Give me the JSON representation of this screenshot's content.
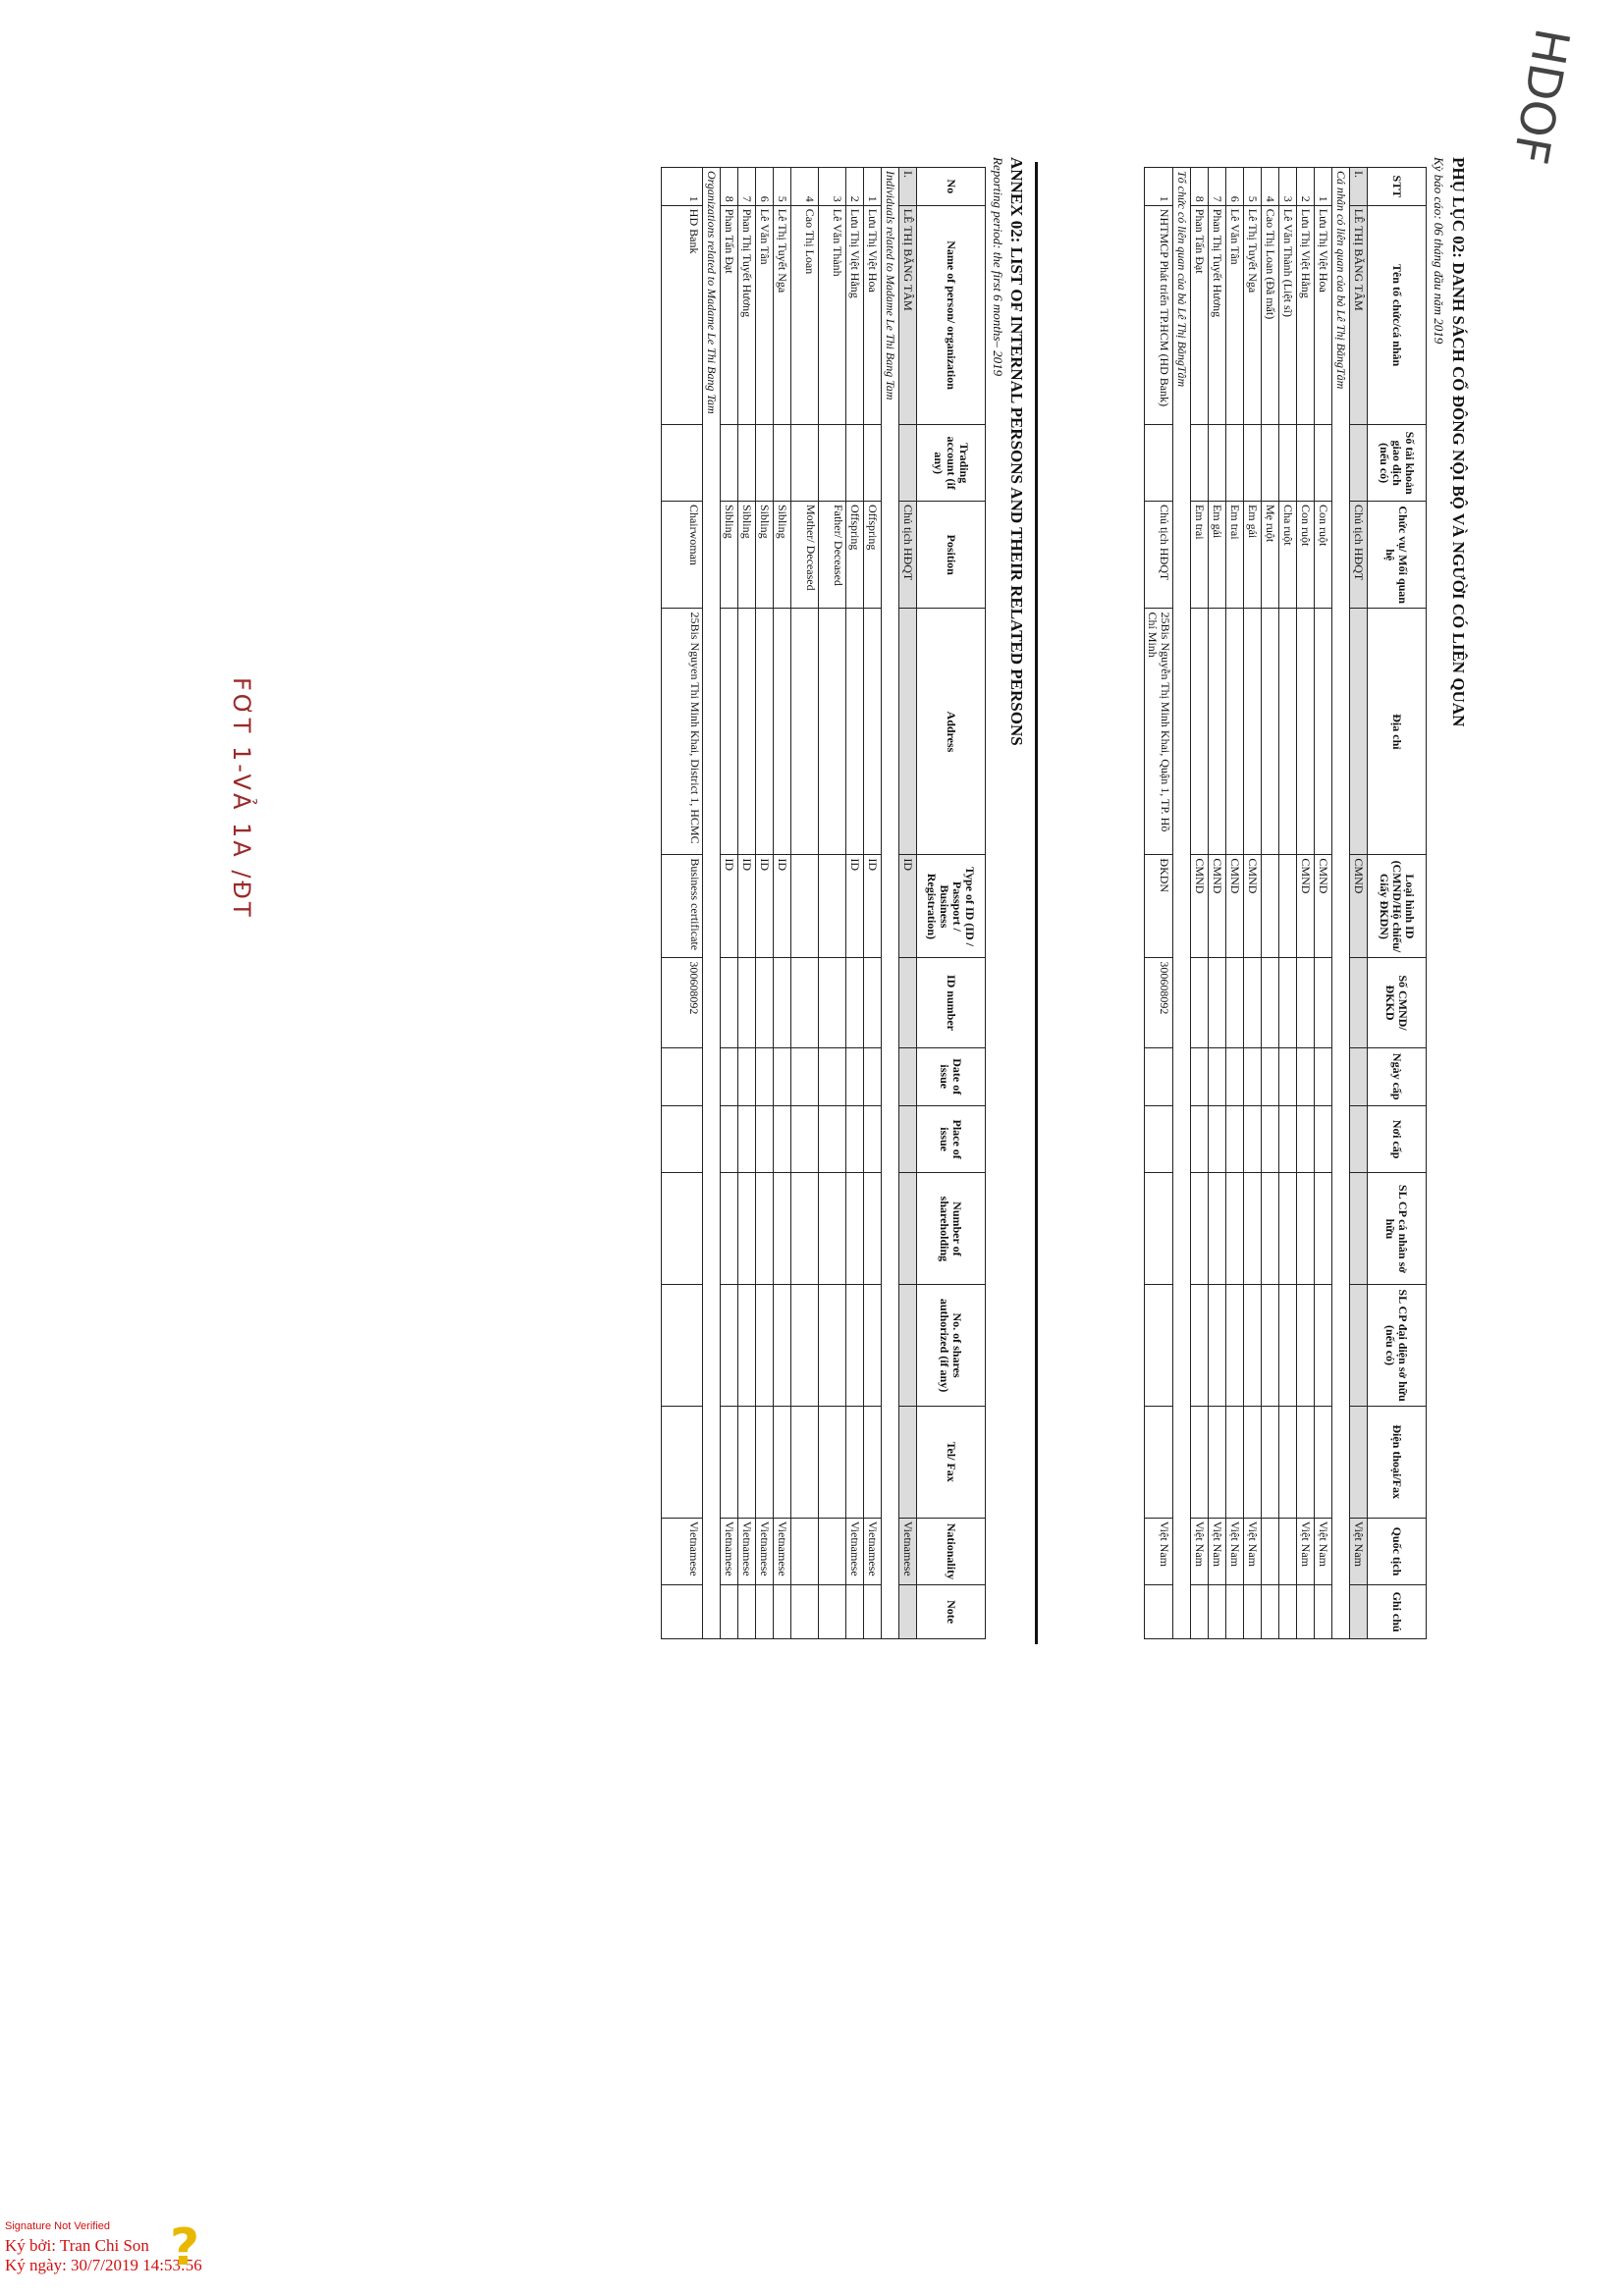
{
  "header_vn": {
    "title": "PHỤ LỤC 02: DANH SÁCH CỔ ĐÔNG NỘI BỘ VÀ NGƯỜI CÓ LIÊN QUAN",
    "period": "Kỳ báo cáo: 06 tháng đầu năm 2019"
  },
  "table_vn": {
    "columns": [
      "STT",
      "Tên tổ chức/cá nhân",
      "Số tài khoản giao dịch (nếu có)",
      "Chức vụ/ Mối quan hệ",
      "Địa chỉ",
      "Loại hình ID (CMND/Hộ chiếu/ Giấy ĐKDN)",
      "Số CMND/ĐKKD",
      "Ngày cấp",
      "Nơi cấp",
      "SL CP cá nhân sở hữu",
      "SL CP đại diện sở hữu (nếu có)",
      "Điện thoại/Fax",
      "Quốc tịch",
      "Ghi chú"
    ],
    "main_row": {
      "stt": "I.",
      "name": "LÊ THỊ BĂNG TÂM",
      "position": "Chủ tịch HĐQT",
      "id_type": "CMND",
      "nationality": "Việt Nam"
    },
    "section_individuals": "Cá nhân có liên quan của bà Lê Thị BăngTâm",
    "individuals": [
      {
        "stt": "1",
        "name": "Lưu Thị Việt Hoa",
        "relation": "Con ruột",
        "id_type": "CMND",
        "nationality": "Việt Nam"
      },
      {
        "stt": "2",
        "name": "Lưu Thị Việt Hằng",
        "relation": "Con ruột",
        "id_type": "CMND",
        "nationality": "Việt Nam"
      },
      {
        "stt": "3",
        "name": "Lê Văn Thành (Liệt sĩ)",
        "relation": "Cha ruột",
        "id_type": "",
        "nationality": ""
      },
      {
        "stt": "4",
        "name": "Cao Thị Loan (Đã mất)",
        "relation": "Mẹ ruột",
        "id_type": "",
        "nationality": ""
      },
      {
        "stt": "5",
        "name": "Lê Thị Tuyết Nga",
        "relation": "Em gái",
        "id_type": "CMND",
        "nationality": "Việt Nam"
      },
      {
        "stt": "6",
        "name": "Lê Văn Tân",
        "relation": "Em trai",
        "id_type": "CMND",
        "nationality": "Việt Nam"
      },
      {
        "stt": "7",
        "name": "Phan Thị Tuyết Hương",
        "relation": "Em gái",
        "id_type": "CMND",
        "nationality": "Việt Nam"
      },
      {
        "stt": "8",
        "name": "Phan Tấn Đạt",
        "relation": "Em trai",
        "id_type": "CMND",
        "nationality": "Việt Nam"
      }
    ],
    "section_orgs": "Tổ chức có liên quan của bà Lê Thị BăngTâm",
    "org": {
      "stt": "1",
      "name": "NHTMCP Phát triển TP.HCM (HD Bank)",
      "position": "Chủ tịch HĐQT",
      "address": "25Bis Nguyễn Thị Minh Khai, Quận 1, TP. Hồ Chí Minh",
      "id_type": "ĐKDN",
      "id_number": "300608092",
      "nationality": "Việt Nam"
    }
  },
  "header_en": {
    "title": "ANNEX 02:   LIST OF INTERNAL PERSONS AND THEIR RELATED PERSONS",
    "period": "Reporting period: the first 6 months– 2019"
  },
  "table_en": {
    "columns": [
      "No",
      "Name of person/ organization",
      "Trading account (if any)",
      "Position",
      "Address",
      "Type of ID (ID / Passport / Business Registration)",
      "ID number",
      "Date of issue",
      "Place of issue",
      "Number of shareholding",
      "No. of shares authorized (if any)",
      "Tel/ Fax",
      "Nationality",
      "Note"
    ],
    "main_row": {
      "stt": "I.",
      "name": "LÊ THỊ BĂNG TÂM",
      "position": "Chủ tịch HĐQT",
      "id_type": "ID",
      "nationality": "Vietnamese"
    },
    "section_individuals": "Individuals related to Madame Le Thi Bang Tam",
    "individuals": [
      {
        "stt": "1",
        "name": "Lưu Thị Việt Hoa",
        "relation": "Offspring",
        "id_type": "ID",
        "nationality": "Vietnamese"
      },
      {
        "stt": "2",
        "name": "Lưu Thị Việt Hằng",
        "relation": "Offspring",
        "id_type": "ID",
        "nationality": "Vietnamese"
      },
      {
        "stt": "3",
        "name": "Lê Văn Thành",
        "relation": "Father/ Deceased",
        "id_type": "",
        "nationality": ""
      },
      {
        "stt": "4",
        "name": "Cao Thị Loan",
        "relation": "Mother/ Deceased",
        "id_type": "",
        "nationality": ""
      },
      {
        "stt": "5",
        "name": "Lê Thị Tuyết Nga",
        "relation": "Sibling",
        "id_type": "ID",
        "nationality": "Vietnamese"
      },
      {
        "stt": "6",
        "name": "Lê Văn Tân",
        "relation": "Sibling",
        "id_type": "ID",
        "nationality": "Vietnamese"
      },
      {
        "stt": "7",
        "name": "Phan Thị Tuyết Hương",
        "relation": "Sibling",
        "id_type": "ID",
        "nationality": "Vietnamese"
      },
      {
        "stt": "8",
        "name": "Phan Tấn Đạt",
        "relation": "Sibling",
        "id_type": "ID",
        "nationality": "Vietnamese"
      }
    ],
    "section_orgs": "Organizations related to Madame Le Thi Bang Tam",
    "org": {
      "stt": "1",
      "name": "HD Bank",
      "position": "Chairwoman",
      "address": "25Bis Nguyen Thi Minh Khai, District 1, HCMC",
      "id_type": "Business certificate",
      "id_number": "300608092",
      "nationality": "Vietnamese"
    }
  },
  "handwritten_note": "HDOF",
  "stamp_text": "FƠT 1-VẢ 1A /ĐT",
  "signature": {
    "status": "Signature Not Verified",
    "signed_by": "Ký bởi: Tran Chi Son",
    "signed_date": "Ký ngày: 30/7/2019 14:53:56",
    "icon": "question-mark-icon"
  }
}
